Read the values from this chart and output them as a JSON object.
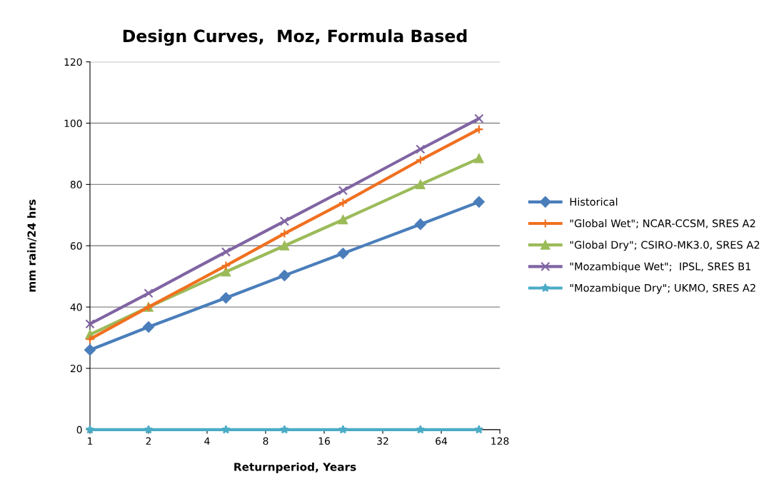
{
  "chart_data": {
    "type": "line",
    "title": "Design Curves,  Moz, Formula Based",
    "xlabel": "Returnperiod, Years",
    "ylabel": "mm rain/24 hrs",
    "x": [
      1,
      2,
      5,
      10,
      20,
      50,
      100
    ],
    "log": "x",
    "xlim": [
      1,
      128
    ],
    "xticks": [
      1,
      2,
      4,
      8,
      16,
      32,
      64,
      128
    ],
    "ylim": [
      0,
      120
    ],
    "yticks": [
      0,
      20,
      40,
      60,
      80,
      100,
      120
    ],
    "grid": "y",
    "legend": "right",
    "line_style": "solid",
    "series": [
      {
        "name": "Historical",
        "color": "#4a7ebb",
        "marker": "diamond",
        "values": [
          26,
          33.5,
          43,
          50.3,
          57.5,
          67,
          74.3
        ]
      },
      {
        "name": "\"Global Wet\"; NCAR-CCSM, SRES A2",
        "color": "#f07020",
        "marker": "plus",
        "values": [
          29.5,
          40,
          53.5,
          64,
          74,
          88,
          98
        ]
      },
      {
        "name": "\"Global Dry\"; CSIRO-MK3.0, SRES A2",
        "color": "#9bbb59",
        "marker": "triangle",
        "values": [
          31,
          40,
          51.5,
          60,
          68.5,
          80,
          88.5
        ]
      },
      {
        "name": "\"Mozambique Wet\";  IPSL, SRES B1",
        "color": "#8064a2",
        "marker": "cross",
        "values": [
          34.5,
          44.5,
          58,
          68,
          78,
          91.5,
          101.5
        ]
      },
      {
        "name": "\"Mozambique Dry\"; UKMO, SRES A2",
        "color": "#4bacc6",
        "marker": "star",
        "values": [
          0,
          0,
          0,
          0,
          0,
          0,
          0
        ]
      }
    ]
  }
}
